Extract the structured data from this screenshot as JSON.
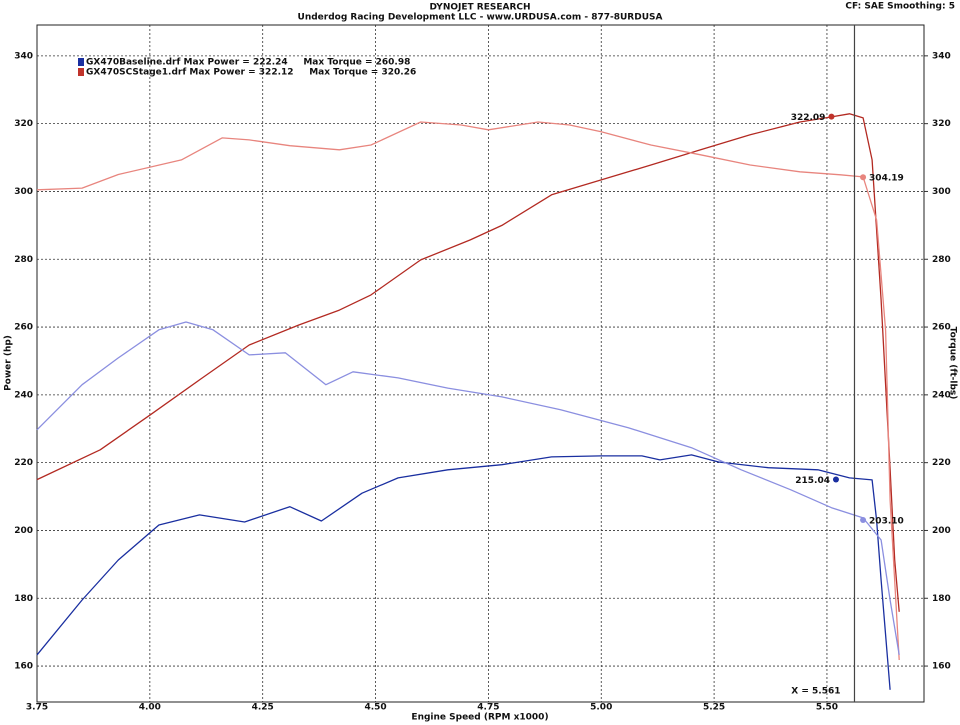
{
  "chart_data": {
    "type": "line",
    "title": "DYNOJET RESEARCH",
    "subtitle": "Underdog Racing Development LLC - www.URDUSA.com - 877-8URDUSA",
    "corner_note": "CF: SAE  Smoothing: 5",
    "x_label": "Engine Speed (RPM x1000)",
    "y_label": "Power (hp)",
    "y2_label": "Torque (ft-lbs)",
    "xlim": [
      3.75,
      5.715
    ],
    "ylim": [
      149.4,
      349.1
    ],
    "y2lim": [
      149.4,
      349.1
    ],
    "xticks": [
      3.75,
      {
        "value": 4,
        "label": "4.00"
      },
      4.25,
      {
        "value": 4.5,
        "label": "4.50"
      },
      4.75,
      {
        "value": 5,
        "label": "5.00"
      },
      5.25,
      {
        "value": 5.5,
        "label": "5.50"
      }
    ],
    "yticks": [
      160,
      180,
      200,
      220,
      240,
      260,
      280,
      300,
      320,
      340
    ],
    "y2ticks": [
      160,
      180,
      200,
      220,
      240,
      260,
      280,
      300,
      320,
      340
    ],
    "grid": true,
    "legend": [
      {
        "label": "GX470Baseline.drf Max Power = 222.24     Max Torque = 260.98",
        "color": "#1a2fa0"
      },
      {
        "label": "GX470SCStage1.drf Max Power = 322.12     Max Torque = 320.26",
        "color": "#c0332b"
      }
    ],
    "series": [
      {
        "color": "#b32a22",
        "width": 1.3,
        "x": [
          3.75,
          3.89,
          4.0,
          4.11,
          4.22,
          4.33,
          4.42,
          4.49,
          4.6,
          4.71,
          4.78,
          4.89,
          5.0,
          5.11,
          5.22,
          5.33,
          5.44,
          5.51,
          5.55,
          5.58,
          5.6,
          5.62,
          5.64,
          5.65,
          5.66
        ],
        "values": [
          215,
          223.8,
          234,
          244.4,
          254.7,
          260.6,
          265,
          269.5,
          279.8,
          285.7,
          290,
          299,
          303.4,
          307.8,
          312.3,
          316.7,
          320.5,
          322,
          322.9,
          321.7,
          309.3,
          268,
          218,
          191.3,
          176
        ]
      },
      {
        "color": "#e8857e",
        "width": 1.3,
        "axis": "y2",
        "x": [
          3.75,
          3.85,
          3.93,
          4.07,
          4.16,
          4.22,
          4.31,
          4.42,
          4.49,
          4.6,
          4.69,
          4.75,
          4.86,
          4.93,
          5.0,
          5.11,
          5.22,
          5.33,
          5.44,
          5.53,
          5.58,
          5.61,
          5.63,
          5.64,
          5.66
        ],
        "values": [
          300.5,
          301,
          305,
          309.3,
          315.8,
          315.2,
          313.5,
          312.3,
          313.7,
          320.5,
          319.6,
          318.2,
          320.5,
          319.6,
          317.6,
          313.7,
          310.8,
          307.8,
          305.8,
          304.9,
          304.3,
          291.6,
          259,
          209,
          161.8
        ]
      },
      {
        "color": "#1a2fa0",
        "width": 1.3,
        "x": [
          3.75,
          3.85,
          3.93,
          4.02,
          4.11,
          4.21,
          4.31,
          4.38,
          4.47,
          4.55,
          4.66,
          4.78,
          4.89,
          5.0,
          5.09,
          5.13,
          5.2,
          5.26,
          5.37,
          5.48,
          5.55,
          5.6,
          5.61,
          5.62,
          5.64
        ],
        "values": [
          163.3,
          179.5,
          191.3,
          201.6,
          204.6,
          202.5,
          207,
          202.8,
          211,
          215.5,
          217.9,
          219.4,
          221.7,
          222,
          222,
          220.8,
          222.3,
          220.2,
          218.5,
          217.9,
          215.5,
          214.9,
          203,
          185.4,
          153
        ]
      },
      {
        "color": "#8b8fe0",
        "width": 1.3,
        "axis": "y2",
        "x": [
          3.75,
          3.85,
          3.93,
          4.02,
          4.08,
          4.14,
          4.22,
          4.3,
          4.39,
          4.45,
          4.55,
          4.66,
          4.78,
          4.91,
          5.06,
          5.2,
          5.31,
          5.42,
          5.51,
          5.58,
          5.62,
          5.64,
          5.66
        ],
        "values": [
          229.7,
          243,
          250.9,
          259.2,
          261.5,
          259.2,
          251.8,
          252.4,
          243,
          246.8,
          245,
          242,
          239.4,
          235.6,
          230.3,
          224.4,
          217.9,
          212,
          206.7,
          203.7,
          197.2,
          179.5,
          163.3
        ]
      }
    ],
    "markers": [
      {
        "x": 5.51,
        "value": 322.09,
        "label": "322.09",
        "color": "#c0332b"
      },
      {
        "x": 5.58,
        "value": 304.19,
        "label": "304.19",
        "color": "#e8857e"
      },
      {
        "x": 5.52,
        "value": 215.04,
        "label": "215.04",
        "color": "#1a2fa0"
      },
      {
        "x": 5.58,
        "value": 203.1,
        "label": "203.10",
        "color": "#8b8fe0"
      }
    ],
    "cursor": {
      "x": 5.561,
      "label": "X = 5.561"
    }
  }
}
